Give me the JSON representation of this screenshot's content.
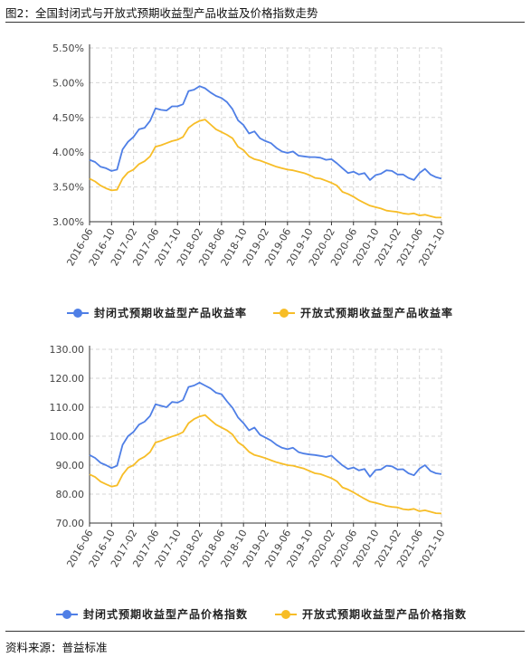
{
  "page": {
    "title": "图2：全国封闭式与开放式预期收益型产品收益及价格指数走势",
    "source": "资料来源：普益标准"
  },
  "colors": {
    "closed": "#4f7fe6",
    "open": "#f7bd27",
    "grid": "#d6d6d6",
    "axis": "#333333"
  },
  "chart_data": [
    {
      "type": "line",
      "title": "",
      "xlabel": "",
      "ylabel": "",
      "ylim": [
        3.0,
        5.5
      ],
      "y_ticks": [
        "3.00%",
        "3.50%",
        "4.00%",
        "4.50%",
        "5.00%",
        "5.50%"
      ],
      "y_tick_values": [
        3.0,
        3.5,
        4.0,
        4.5,
        5.0,
        5.5
      ],
      "x_tick_labels": [
        "2016-06",
        "2016-10",
        "2017-02",
        "2017-06",
        "2017-10",
        "2018-02",
        "2018-06",
        "2018-10",
        "2019-02",
        "2019-06",
        "2019-10",
        "2020-02",
        "2020-06",
        "2020-10",
        "2021-02",
        "2021-06",
        "2021-10"
      ],
      "grid": true,
      "legend": "bottom",
      "series": [
        {
          "name": "封闭式预期收益型产品收益率",
          "values": [
            3.89,
            3.86,
            3.79,
            3.77,
            3.73,
            3.75,
            4.04,
            4.15,
            4.22,
            4.33,
            4.35,
            4.45,
            4.63,
            4.61,
            4.6,
            4.66,
            4.66,
            4.69,
            4.88,
            4.9,
            4.95,
            4.92,
            4.86,
            4.81,
            4.78,
            4.72,
            4.62,
            4.46,
            4.39,
            4.27,
            4.3,
            4.2,
            4.16,
            4.13,
            4.06,
            4.01,
            3.99,
            4.01,
            3.95,
            3.94,
            3.93,
            3.93,
            3.92,
            3.89,
            3.9,
            3.84,
            3.77,
            3.7,
            3.72,
            3.68,
            3.7,
            3.6,
            3.67,
            3.69,
            3.74,
            3.73,
            3.68,
            3.68,
            3.63,
            3.6,
            3.7,
            3.76,
            3.68,
            3.64,
            3.62
          ]
        },
        {
          "name": "开放式预期收益型产品收益率",
          "values": [
            3.62,
            3.58,
            3.52,
            3.48,
            3.45,
            3.46,
            3.62,
            3.71,
            3.75,
            3.83,
            3.87,
            3.94,
            4.08,
            4.1,
            4.13,
            4.16,
            4.18,
            4.22,
            4.35,
            4.41,
            4.45,
            4.47,
            4.4,
            4.33,
            4.29,
            4.25,
            4.2,
            4.08,
            4.03,
            3.94,
            3.9,
            3.88,
            3.85,
            3.82,
            3.79,
            3.77,
            3.75,
            3.74,
            3.72,
            3.7,
            3.67,
            3.63,
            3.62,
            3.59,
            3.56,
            3.52,
            3.43,
            3.4,
            3.36,
            3.31,
            3.27,
            3.23,
            3.21,
            3.19,
            3.16,
            3.15,
            3.14,
            3.12,
            3.11,
            3.12,
            3.09,
            3.1,
            3.08,
            3.06,
            3.06
          ]
        }
      ]
    },
    {
      "type": "line",
      "title": "",
      "xlabel": "",
      "ylabel": "",
      "ylim": [
        70,
        130
      ],
      "y_ticks": [
        "70.00",
        "80.00",
        "90.00",
        "100.00",
        "110.00",
        "120.00",
        "130.00"
      ],
      "y_tick_values": [
        70,
        80,
        90,
        100,
        110,
        120,
        130
      ],
      "x_tick_labels": [
        "2016-06",
        "2016-10",
        "2017-02",
        "2017-06",
        "2017-10",
        "2018-02",
        "2018-06",
        "2018-10",
        "2019-02",
        "2019-06",
        "2019-10",
        "2020-02",
        "2020-06",
        "2020-10",
        "2021-02",
        "2021-06",
        "2021-10"
      ],
      "grid": true,
      "legend": "bottom",
      "series": [
        {
          "name": "封闭式预期收益型产品价格指数",
          "values": [
            93.5,
            92.5,
            90.8,
            90.0,
            89.0,
            89.8,
            97.0,
            100.0,
            101.5,
            104.0,
            105.0,
            107.0,
            111.0,
            110.5,
            110.0,
            111.8,
            111.6,
            112.5,
            117.0,
            117.5,
            118.5,
            117.5,
            116.5,
            115.0,
            114.5,
            112.0,
            109.8,
            106.5,
            104.5,
            102.0,
            103.0,
            100.5,
            99.5,
            98.5,
            97.0,
            96.0,
            95.5,
            96.0,
            94.5,
            94.0,
            93.7,
            93.5,
            93.2,
            92.8,
            93.3,
            91.6,
            89.9,
            88.7,
            89.2,
            88.2,
            88.7,
            86.0,
            88.3,
            88.5,
            89.8,
            89.6,
            88.5,
            88.6,
            87.2,
            86.5,
            88.8,
            90.0,
            88.0,
            87.2,
            86.9
          ]
        },
        {
          "name": "开放式预期收益型产品价格指数",
          "values": [
            86.8,
            85.9,
            84.3,
            83.4,
            82.6,
            83.0,
            86.7,
            89.1,
            90.0,
            91.9,
            92.9,
            94.5,
            97.8,
            98.4,
            99.2,
            99.9,
            100.5,
            101.4,
            104.5,
            105.9,
            106.8,
            107.3,
            105.6,
            104.0,
            103.0,
            102.0,
            100.6,
            97.9,
            96.6,
            94.6,
            93.5,
            93.0,
            92.4,
            91.7,
            91.0,
            90.5,
            90.0,
            89.8,
            89.3,
            88.8,
            88.0,
            87.2,
            86.9,
            86.2,
            85.5,
            84.4,
            82.3,
            81.6,
            80.6,
            79.5,
            78.4,
            77.4,
            77.0,
            76.5,
            75.9,
            75.6,
            75.4,
            74.8,
            74.6,
            74.9,
            74.1,
            74.4,
            73.9,
            73.4,
            73.3
          ]
        }
      ]
    }
  ]
}
